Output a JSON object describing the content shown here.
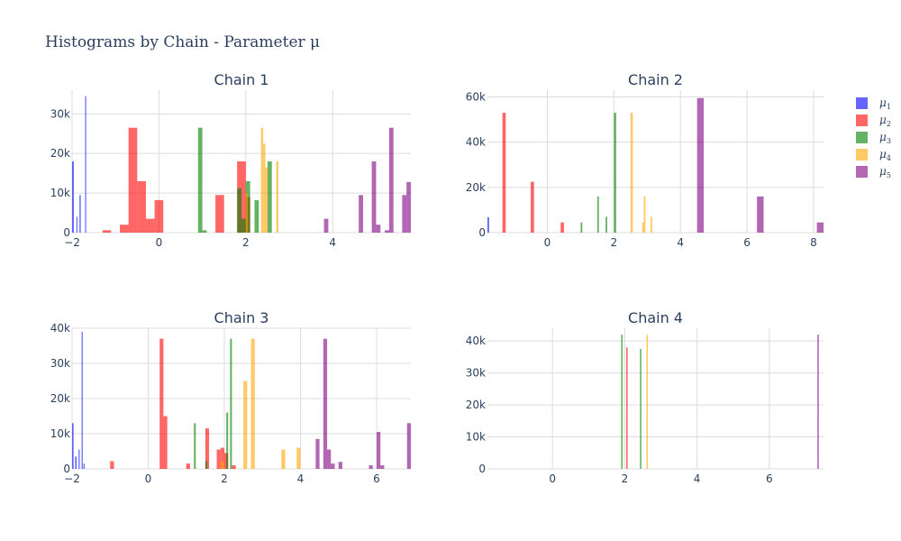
{
  "title": "Histograms by Chain - Parameter μ",
  "legend": [
    {
      "base": "μ",
      "sub": "1",
      "color": "#0000ff",
      "opacity": 0.6
    },
    {
      "base": "μ",
      "sub": "2",
      "color": "#ff0000",
      "opacity": 0.6
    },
    {
      "base": "μ",
      "sub": "3",
      "color": "#008000",
      "opacity": 0.6
    },
    {
      "base": "μ",
      "sub": "4",
      "color": "#ffa500",
      "opacity": 0.6
    },
    {
      "base": "μ",
      "sub": "5",
      "color": "#800080",
      "opacity": 0.6
    }
  ],
  "chart_data": [
    {
      "type": "bar",
      "title": "Chain 1",
      "xlim": [
        -2,
        5.8
      ],
      "ylim": [
        0,
        36000
      ],
      "xticks": [
        -2,
        0,
        2,
        4
      ],
      "yticks": [
        0,
        10000,
        20000,
        30000
      ],
      "ytick_labels": [
        "0",
        "10k",
        "20k",
        "30k"
      ],
      "series": [
        {
          "bins": [
            [
              -2.0,
              -1.96,
              18000
            ],
            [
              -1.9,
              -1.88,
              4000
            ],
            [
              -1.83,
              -1.8,
              9500
            ],
            [
              -1.7,
              -1.68,
              34500
            ]
          ]
        },
        {
          "bins": [
            [
              -1.3,
              -1.1,
              600
            ],
            [
              -0.9,
              -0.7,
              2000
            ],
            [
              -0.7,
              -0.5,
              26500
            ],
            [
              -0.5,
              -0.3,
              13000
            ],
            [
              -0.3,
              -0.1,
              3500
            ],
            [
              -0.1,
              0.1,
              8200
            ],
            [
              1.3,
              1.5,
              9500
            ],
            [
              1.8,
              2.0,
              18000
            ],
            [
              2.0,
              2.1,
              9000
            ]
          ]
        },
        {
          "bins": [
            [
              0.9,
              1.0,
              26500
            ],
            [
              1.0,
              1.1,
              600
            ],
            [
              1.8,
              1.9,
              11200
            ],
            [
              1.9,
              2.0,
              3500
            ],
            [
              2.0,
              2.1,
              13000
            ],
            [
              2.2,
              2.3,
              8200
            ],
            [
              2.5,
              2.6,
              18000
            ]
          ]
        },
        {
          "bins": [
            [
              2.0,
              2.05,
              10000
            ],
            [
              2.35,
              2.4,
              26500
            ],
            [
              2.4,
              2.45,
              22500
            ],
            [
              2.45,
              2.5,
              16500
            ],
            [
              2.7,
              2.75,
              18000
            ]
          ]
        },
        {
          "bins": [
            [
              3.8,
              3.9,
              3500
            ],
            [
              4.6,
              4.7,
              9500
            ],
            [
              4.9,
              5.0,
              18000
            ],
            [
              5.0,
              5.1,
              2000
            ],
            [
              5.2,
              5.3,
              600
            ],
            [
              5.3,
              5.4,
              26500
            ],
            [
              5.6,
              5.7,
              9500
            ],
            [
              5.7,
              5.8,
              12800
            ]
          ]
        }
      ]
    },
    {
      "type": "bar",
      "title": "Chain 2",
      "xlim": [
        -1.8,
        8.3
      ],
      "ylim": [
        0,
        63000
      ],
      "xticks": [
        0,
        2,
        4,
        6,
        8
      ],
      "yticks": [
        0,
        20000,
        40000,
        60000
      ],
      "ytick_labels": [
        "0",
        "20k",
        "40k",
        "60k"
      ],
      "series": [
        {
          "bins": [
            [
              -1.8,
              -1.75,
              6800
            ]
          ]
        },
        {
          "bins": [
            [
              -1.35,
              -1.25,
              53000
            ],
            [
              -0.5,
              -0.4,
              22500
            ],
            [
              0.4,
              0.5,
              4500
            ]
          ]
        },
        {
          "bins": [
            [
              1.0,
              1.05,
              4500
            ],
            [
              1.5,
              1.55,
              16000
            ],
            [
              1.75,
              1.8,
              7000
            ],
            [
              2.0,
              2.07,
              53000
            ]
          ]
        },
        {
          "bins": [
            [
              2.5,
              2.57,
              53000
            ],
            [
              2.85,
              2.9,
              4500
            ],
            [
              2.9,
              2.95,
              16000
            ],
            [
              3.1,
              3.15,
              7000
            ]
          ]
        },
        {
          "bins": [
            [
              4.5,
              4.7,
              59500
            ],
            [
              6.3,
              6.5,
              16000
            ],
            [
              8.1,
              8.3,
              4500
            ]
          ]
        }
      ]
    },
    {
      "type": "bar",
      "title": "Chain 3",
      "xlim": [
        -2,
        6.9
      ],
      "ylim": [
        0,
        40000
      ],
      "xticks": [
        -2,
        0,
        2,
        4,
        6
      ],
      "yticks": [
        0,
        10000,
        20000,
        30000,
        40000
      ],
      "ytick_labels": [
        "0",
        "10k",
        "20k",
        "30k",
        "40k"
      ],
      "series": [
        {
          "bins": [
            [
              -2.0,
              -1.96,
              13000
            ],
            [
              -1.92,
              -1.88,
              3500
            ],
            [
              -1.83,
              -1.8,
              5500
            ],
            [
              -1.75,
              -1.72,
              39000
            ],
            [
              -1.7,
              -1.67,
              1500
            ]
          ]
        },
        {
          "bins": [
            [
              -1.0,
              -0.9,
              2200
            ],
            [
              0.3,
              0.4,
              37000
            ],
            [
              0.4,
              0.5,
              15000
            ],
            [
              1.0,
              1.1,
              1500
            ],
            [
              1.5,
              1.6,
              11500
            ],
            [
              1.8,
              1.9,
              5500
            ],
            [
              1.9,
              2.0,
              6000
            ],
            [
              2.0,
              2.1,
              4500
            ],
            [
              2.2,
              2.3,
              1000
            ]
          ]
        },
        {
          "bins": [
            [
              1.2,
              1.25,
              13000
            ],
            [
              1.5,
              1.55,
              2200
            ],
            [
              2.05,
              2.1,
              16000
            ],
            [
              2.15,
              2.2,
              37000
            ]
          ]
        },
        {
          "bins": [
            [
              1.9,
              2.0,
              2200
            ],
            [
              2.5,
              2.6,
              25000
            ],
            [
              2.7,
              2.8,
              37000
            ],
            [
              3.5,
              3.6,
              5500
            ],
            [
              3.9,
              4.0,
              6000
            ]
          ]
        },
        {
          "bins": [
            [
              4.4,
              4.5,
              8500
            ],
            [
              4.6,
              4.7,
              37000
            ],
            [
              4.7,
              4.8,
              5500
            ],
            [
              4.8,
              4.9,
              1500
            ],
            [
              5.0,
              5.1,
              2000
            ],
            [
              5.8,
              5.9,
              1000
            ],
            [
              6.0,
              6.1,
              10500
            ],
            [
              6.1,
              6.2,
              1000
            ],
            [
              6.8,
              6.9,
              13000
            ]
          ]
        }
      ]
    },
    {
      "type": "bar",
      "title": "Chain 4",
      "xlim": [
        -1.8,
        7.5
      ],
      "ylim": [
        0,
        44000
      ],
      "xticks": [
        0,
        2,
        4,
        6
      ],
      "yticks": [
        0,
        10000,
        20000,
        30000,
        40000
      ],
      "ytick_labels": [
        "0",
        "10k",
        "20k",
        "30k",
        "40k"
      ],
      "series": [
        {
          "bins": []
        },
        {
          "bins": [
            [
              2.04,
              2.08,
              38000
            ]
          ]
        },
        {
          "bins": [
            [
              1.9,
              1.94,
              42000
            ],
            [
              2.42,
              2.46,
              37500
            ]
          ]
        },
        {
          "bins": [
            [
              2.6,
              2.64,
              42000
            ]
          ]
        },
        {
          "bins": [
            [
              7.33,
              7.37,
              42000
            ]
          ]
        }
      ]
    }
  ]
}
